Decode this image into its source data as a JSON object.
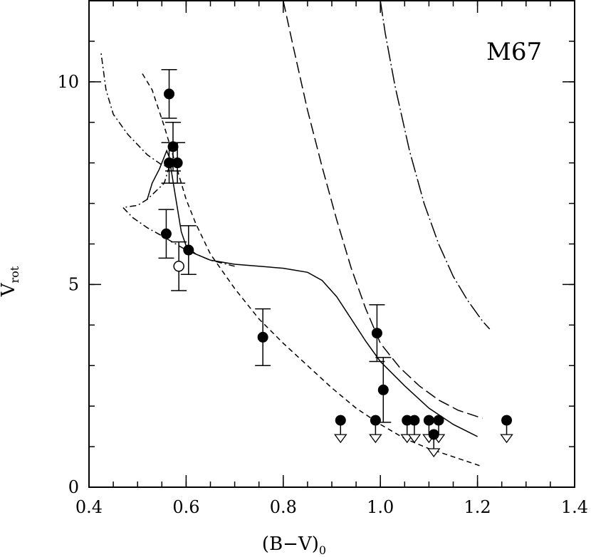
{
  "chart_data": {
    "type": "scatter",
    "title": "",
    "annotation": "M67",
    "xlabel": "(B−V)",
    "xlabel_sub": "0",
    "ylabel": "V",
    "ylabel_sub": "rot",
    "xlim": [
      0.4,
      1.4
    ],
    "ylim": [
      0,
      12
    ],
    "x_ticks": [
      0.4,
      0.6,
      0.8,
      1.0,
      1.2,
      1.4
    ],
    "x_tick_labels": [
      "0.4",
      "0.6",
      "0.8",
      "1.0",
      "1.2",
      "1.4"
    ],
    "x_minor_step": 0.05,
    "y_ticks": [
      0,
      5,
      10
    ],
    "y_tick_labels": [
      "0",
      "5",
      "10"
    ],
    "y_minor_step": 1,
    "grid": false,
    "series": [
      {
        "name": "measurements",
        "marker": "filled-circle",
        "points": [
          {
            "x": 0.565,
            "y": 9.7,
            "err": 0.6
          },
          {
            "x": 0.573,
            "y": 8.4,
            "err": 0.6
          },
          {
            "x": 0.565,
            "y": 8.0,
            "err": 0.5
          },
          {
            "x": 0.582,
            "y": 8.0,
            "err": 0.5
          },
          {
            "x": 0.559,
            "y": 6.25,
            "err": 0.6
          },
          {
            "x": 0.605,
            "y": 5.85,
            "err": 0.6
          },
          {
            "x": 0.758,
            "y": 3.7,
            "err": 0.7
          },
          {
            "x": 0.993,
            "y": 3.8,
            "err": 0.7
          },
          {
            "x": 1.006,
            "y": 2.4,
            "err": 0.8
          }
        ]
      },
      {
        "name": "open",
        "marker": "open-circle",
        "points": [
          {
            "x": 0.585,
            "y": 5.45,
            "err": 0.6
          }
        ]
      },
      {
        "name": "upper limits",
        "marker": "filled-circle-with-arrow",
        "points": [
          {
            "x": 0.918,
            "y": 1.65
          },
          {
            "x": 0.99,
            "y": 1.65
          },
          {
            "x": 1.055,
            "y": 1.65
          },
          {
            "x": 1.07,
            "y": 1.65
          },
          {
            "x": 1.1,
            "y": 1.65
          },
          {
            "x": 1.12,
            "y": 1.65
          },
          {
            "x": 1.11,
            "y": 1.3
          },
          {
            "x": 1.26,
            "y": 1.65
          }
        ]
      }
    ],
    "curves": [
      {
        "name": "solid model",
        "style": "solid",
        "points": [
          [
            0.52,
            7.1
          ],
          [
            0.53,
            7.5
          ],
          [
            0.545,
            7.85
          ],
          [
            0.56,
            8.3
          ],
          [
            0.565,
            8.15
          ],
          [
            0.575,
            7.4
          ],
          [
            0.59,
            6.3
          ],
          [
            0.6,
            5.95
          ],
          [
            0.62,
            5.75
          ],
          [
            0.65,
            5.6
          ],
          [
            0.7,
            5.5
          ],
          [
            0.75,
            5.45
          ],
          [
            0.8,
            5.4
          ],
          [
            0.85,
            5.3
          ],
          [
            0.88,
            5.1
          ],
          [
            0.91,
            4.7
          ],
          [
            0.94,
            4.15
          ],
          [
            0.97,
            3.6
          ],
          [
            1.0,
            3.1
          ],
          [
            1.05,
            2.5
          ],
          [
            1.1,
            1.95
          ],
          [
            1.15,
            1.55
          ],
          [
            1.2,
            1.25
          ]
        ]
      },
      {
        "name": "short-dashed model",
        "style": "short-dash",
        "points": [
          [
            0.51,
            10.2
          ],
          [
            0.53,
            9.8
          ],
          [
            0.555,
            8.9
          ],
          [
            0.58,
            7.9
          ],
          [
            0.6,
            7.1
          ],
          [
            0.62,
            6.5
          ],
          [
            0.65,
            5.75
          ],
          [
            0.7,
            4.9
          ],
          [
            0.75,
            4.15
          ],
          [
            0.8,
            3.55
          ],
          [
            0.85,
            3.0
          ],
          [
            0.9,
            2.45
          ],
          [
            0.95,
            1.95
          ],
          [
            1.0,
            1.55
          ],
          [
            1.05,
            1.2
          ],
          [
            1.1,
            0.95
          ],
          [
            1.15,
            0.75
          ],
          [
            1.2,
            0.55
          ],
          [
            1.21,
            0.5
          ]
        ]
      },
      {
        "name": "dot-dashed model",
        "style": "dot-dash",
        "points": [
          [
            0.425,
            10.7
          ],
          [
            0.435,
            9.8
          ],
          [
            0.45,
            9.2
          ],
          [
            0.48,
            8.7
          ],
          [
            0.52,
            8.2
          ],
          [
            0.55,
            7.95
          ],
          [
            0.565,
            7.9
          ],
          [
            0.555,
            7.5
          ],
          [
            0.52,
            7.1
          ],
          [
            0.5,
            6.95
          ],
          [
            0.47,
            6.9
          ],
          [
            0.49,
            6.65
          ],
          [
            0.52,
            6.4
          ],
          [
            0.55,
            6.2
          ],
          [
            0.6,
            5.85
          ],
          [
            0.65,
            5.6
          ],
          [
            0.7,
            5.45
          ]
        ]
      },
      {
        "name": "long-dashed model",
        "style": "long-dash",
        "points": [
          [
            0.8,
            12.0
          ],
          [
            0.82,
            10.9
          ],
          [
            0.85,
            9.3
          ],
          [
            0.88,
            7.9
          ],
          [
            0.91,
            6.6
          ],
          [
            0.94,
            5.4
          ],
          [
            0.97,
            4.4
          ],
          [
            1.0,
            3.55
          ],
          [
            1.04,
            2.95
          ],
          [
            1.08,
            2.5
          ],
          [
            1.12,
            2.15
          ],
          [
            1.16,
            1.9
          ],
          [
            1.21,
            1.7
          ]
        ]
      },
      {
        "name": "dash-dot steep model",
        "style": "long-dash-dot",
        "points": [
          [
            1.0,
            12.0
          ],
          [
            1.01,
            11.2
          ],
          [
            1.03,
            9.9
          ],
          [
            1.06,
            8.3
          ],
          [
            1.09,
            7.0
          ],
          [
            1.12,
            6.0
          ],
          [
            1.15,
            5.2
          ],
          [
            1.18,
            4.6
          ],
          [
            1.21,
            4.1
          ],
          [
            1.225,
            3.9
          ]
        ]
      }
    ]
  }
}
